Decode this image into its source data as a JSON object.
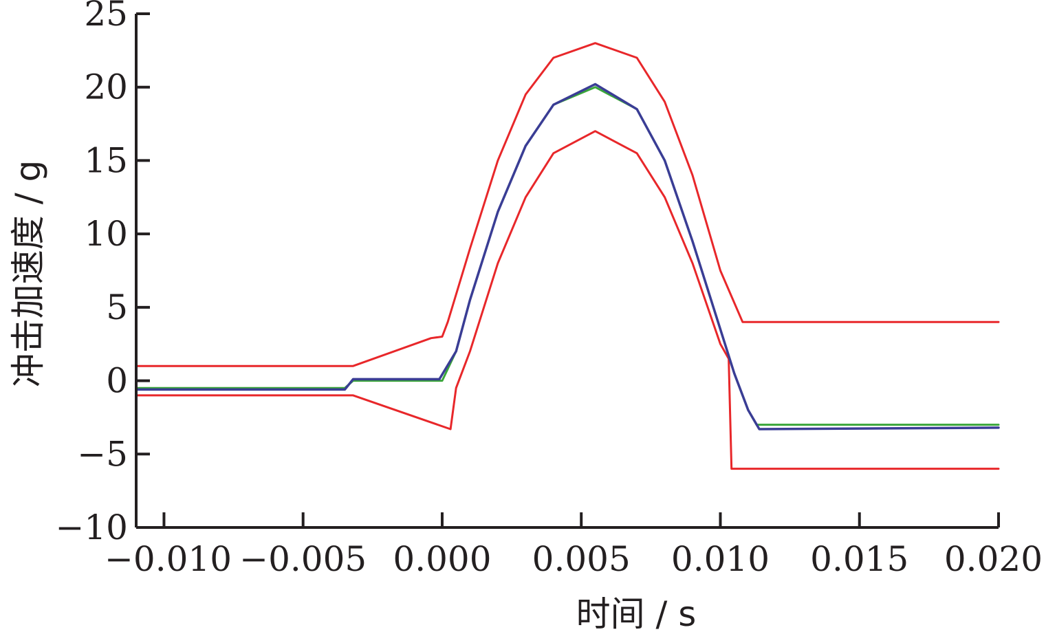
{
  "chart_data": {
    "type": "line",
    "xlabel": "时间 / s",
    "ylabel": "冲击加速度 / g",
    "xlim": [
      -0.011,
      0.02
    ],
    "ylim": [
      -10,
      25
    ],
    "xticks": [
      -0.01,
      -0.005,
      0.0,
      0.005,
      0.01,
      0.015,
      0.02
    ],
    "xtick_labels": [
      "−0.010",
      "−0.005",
      "0.000",
      "0.005",
      "0.010",
      "0.015",
      "0.020"
    ],
    "yticks": [
      -10,
      -5,
      0,
      5,
      10,
      15,
      20,
      25
    ],
    "ytick_labels": [
      "−10",
      "−5",
      "0",
      "5",
      "10",
      "15",
      "20",
      "25"
    ],
    "grid": false,
    "legend": "none",
    "series": [
      {
        "color": "#e8272a",
        "x": [
          -0.011,
          -0.0032,
          -0.0004,
          0.0,
          0.0002,
          0.001,
          0.002,
          0.003,
          0.004,
          0.0055,
          0.007,
          0.008,
          0.009,
          0.01,
          0.0108,
          0.02
        ],
        "y": [
          1.0,
          1.0,
          2.9,
          3.0,
          4.0,
          9.0,
          15.0,
          19.5,
          22.0,
          23.0,
          22.0,
          19.0,
          14.0,
          7.5,
          4.0,
          4.0
        ]
      },
      {
        "color": "#e8272a",
        "x": [
          -0.011,
          -0.0032,
          0.0003,
          0.0005,
          0.001,
          0.002,
          0.003,
          0.004,
          0.0055,
          0.007,
          0.008,
          0.009,
          0.01,
          0.0103,
          0.0104,
          0.02
        ],
        "y": [
          -1.0,
          -1.0,
          -3.3,
          -0.5,
          2.0,
          8.0,
          12.5,
          15.5,
          17.0,
          15.5,
          12.5,
          8.0,
          2.5,
          1.5,
          -6.0,
          -6.0
        ]
      },
      {
        "color": "#3aa63a",
        "x": [
          -0.011,
          -0.0035,
          -0.0032,
          0.0,
          0.0005,
          0.001,
          0.002,
          0.003,
          0.004,
          0.0055,
          0.007,
          0.008,
          0.009,
          0.01,
          0.0105,
          0.011,
          0.0113,
          0.02
        ],
        "y": [
          -0.5,
          -0.5,
          0.0,
          0.0,
          2.0,
          5.5,
          11.5,
          16.0,
          18.8,
          20.0,
          18.5,
          15.0,
          9.5,
          3.5,
          0.5,
          -2.0,
          -3.0,
          -3.0
        ]
      },
      {
        "color": "#3a3d95",
        "x": [
          -0.011,
          -0.0035,
          -0.0032,
          -0.0001,
          0.0005,
          0.001,
          0.002,
          0.003,
          0.004,
          0.0055,
          0.007,
          0.008,
          0.009,
          0.01,
          0.0105,
          0.011,
          0.0114,
          0.02
        ],
        "y": [
          -0.6,
          -0.6,
          0.1,
          0.1,
          2.0,
          5.5,
          11.5,
          16.0,
          18.8,
          20.2,
          18.5,
          15.0,
          9.5,
          3.5,
          0.5,
          -2.0,
          -3.3,
          -3.2
        ]
      }
    ]
  }
}
